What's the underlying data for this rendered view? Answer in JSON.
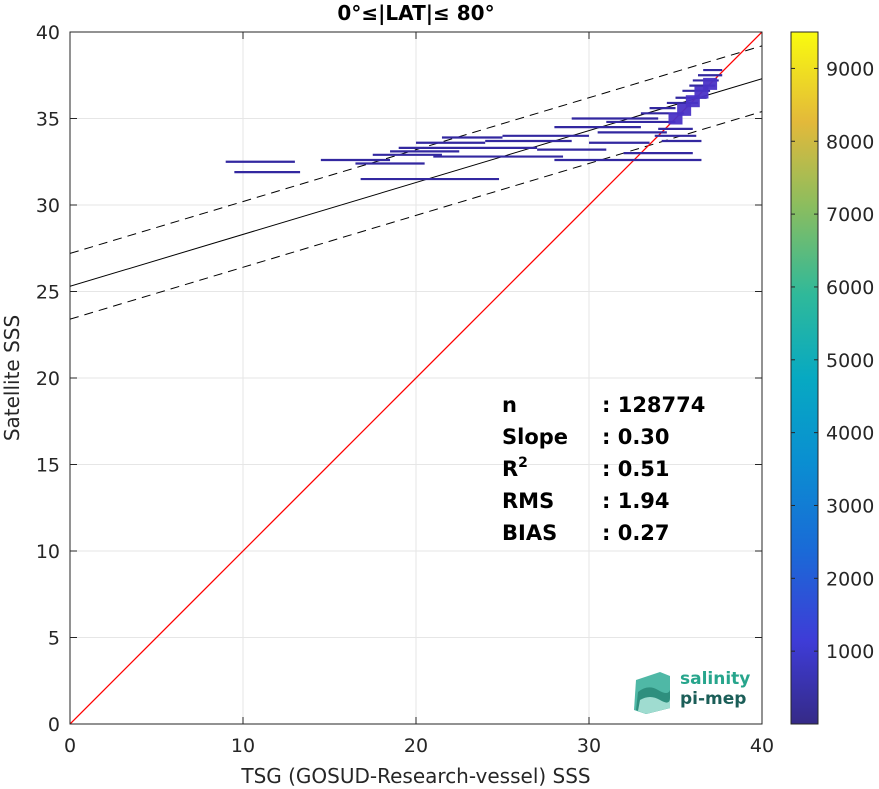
{
  "chart_data": {
    "type": "scatter",
    "title": "0°≤|LAT|≤ 80°",
    "xlabel": "TSG (GOSUD-Research-vessel) SSS",
    "ylabel": "Satellite SSS",
    "xlim": [
      0,
      40
    ],
    "ylim": [
      0,
      40
    ],
    "xticks": [
      "0",
      "10",
      "20",
      "30",
      "40"
    ],
    "yticks": [
      "0",
      "5",
      "10",
      "15",
      "20",
      "25",
      "30",
      "35",
      "40"
    ],
    "grid": true,
    "identity_line": {
      "slope": 1,
      "intercept": 0,
      "color": "#ff0000"
    },
    "fit_line": {
      "slope": 0.3,
      "intercept": 25.3,
      "color": "#000000"
    },
    "fit_band": {
      "offset": 1.9
    },
    "density_segments": [
      {
        "x1": 9.0,
        "x2": 13.0,
        "y": 32.5
      },
      {
        "x1": 9.5,
        "x2": 13.3,
        "y": 31.9
      },
      {
        "x1": 14.5,
        "x2": 18.5,
        "y": 32.6
      },
      {
        "x1": 16.5,
        "x2": 20.5,
        "y": 32.4
      },
      {
        "x1": 17.5,
        "x2": 21.5,
        "y": 32.9
      },
      {
        "x1": 18.5,
        "x2": 22.5,
        "y": 33.1
      },
      {
        "x1": 19.0,
        "x2": 27.0,
        "y": 33.3
      },
      {
        "x1": 20.0,
        "x2": 24.0,
        "y": 33.6
      },
      {
        "x1": 21.5,
        "x2": 25.0,
        "y": 33.9
      },
      {
        "x1": 16.8,
        "x2": 24.8,
        "y": 31.5
      },
      {
        "x1": 21.0,
        "x2": 28.5,
        "y": 32.8
      },
      {
        "x1": 24.0,
        "x2": 29.0,
        "y": 33.7
      },
      {
        "x1": 25.0,
        "x2": 30.0,
        "y": 34.0
      },
      {
        "x1": 27.0,
        "x2": 31.0,
        "y": 33.2
      },
      {
        "x1": 28.0,
        "x2": 33.0,
        "y": 34.5
      },
      {
        "x1": 29.0,
        "x2": 34.0,
        "y": 35.0
      },
      {
        "x1": 28.0,
        "x2": 36.5,
        "y": 32.6
      },
      {
        "x1": 30.0,
        "x2": 33.5,
        "y": 33.6
      },
      {
        "x1": 30.5,
        "x2": 34.5,
        "y": 34.2
      },
      {
        "x1": 31.0,
        "x2": 35.0,
        "y": 34.8
      },
      {
        "x1": 33.0,
        "x2": 35.5,
        "y": 35.3
      },
      {
        "x1": 33.5,
        "x2": 35.0,
        "y": 35.6
      },
      {
        "x1": 34.0,
        "x2": 36.0,
        "y": 34.4
      },
      {
        "x1": 33.8,
        "x2": 36.2,
        "y": 34.0
      },
      {
        "x1": 34.2,
        "x2": 36.5,
        "y": 33.7
      },
      {
        "x1": 32.0,
        "x2": 36.0,
        "y": 33.0
      },
      {
        "x1": 34.5,
        "x2": 36.3,
        "y": 35.9
      },
      {
        "x1": 35.0,
        "x2": 36.8,
        "y": 36.2
      },
      {
        "x1": 35.4,
        "x2": 37.0,
        "y": 36.6
      },
      {
        "x1": 35.8,
        "x2": 37.3,
        "y": 36.9
      },
      {
        "x1": 36.0,
        "x2": 37.5,
        "y": 37.2
      },
      {
        "x1": 36.3,
        "x2": 37.7,
        "y": 37.5
      },
      {
        "x1": 36.6,
        "x2": 37.7,
        "y": 37.8
      }
    ],
    "dense_core": [
      {
        "x": 35.0,
        "y": 35.0
      },
      {
        "x": 35.5,
        "y": 35.5
      },
      {
        "x": 36.0,
        "y": 36.0
      },
      {
        "x": 36.5,
        "y": 36.5
      },
      {
        "x": 37.0,
        "y": 37.0
      }
    ],
    "colorbar": {
      "min": 0,
      "max": 9500,
      "ticks": [
        "1000",
        "2000",
        "3000",
        "4000",
        "5000",
        "6000",
        "7000",
        "8000",
        "9000"
      ],
      "colormap": "parula"
    },
    "stats": [
      {
        "label": "n",
        "value": ": 128774"
      },
      {
        "label": "Slope",
        "value": ": 0.30"
      },
      {
        "label": "R",
        "sup": "2",
        "value": ": 0.51"
      },
      {
        "label": "RMS",
        "value": ": 1.94"
      },
      {
        "label": "BIAS",
        "value": ": 0.27"
      }
    ]
  },
  "logo": {
    "line1": "salinity",
    "line2": "pi-mep",
    "color1": "#27a58c",
    "color2": "#1b5e58"
  }
}
